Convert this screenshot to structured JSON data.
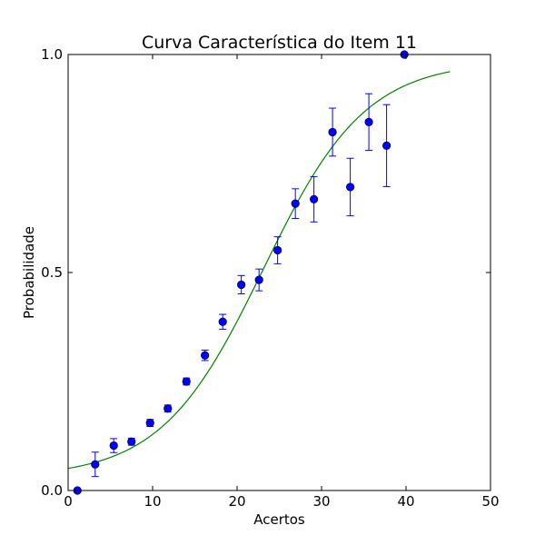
{
  "chart_data": {
    "type": "scatter",
    "title": "Curva Característica do Item 11",
    "xlabel": "Acertos",
    "ylabel": "Probabilidade",
    "xlim": [
      0,
      50
    ],
    "ylim": [
      0.0,
      1.0
    ],
    "x_ticks": [
      0,
      10,
      20,
      30,
      40,
      50
    ],
    "x_tick_labels": [
      "0",
      "10",
      "20",
      "30",
      "40",
      "50"
    ],
    "y_ticks": [
      0.0,
      0.5,
      1.0
    ],
    "y_tick_labels": [
      "0.0",
      "0.5",
      "1.0"
    ],
    "grid": false,
    "colors": {
      "points": "#0000ff",
      "curve": "#008000"
    },
    "series": [
      {
        "kind": "points-with-error-bars",
        "x": [
          1.1,
          3.2,
          5.4,
          7.5,
          9.7,
          11.8,
          14.0,
          16.2,
          18.3,
          20.5,
          22.6,
          24.8,
          26.9,
          29.1,
          31.3,
          33.4,
          35.6,
          37.7,
          39.8
        ],
        "y": [
          0.0,
          0.06,
          0.103,
          0.112,
          0.155,
          0.188,
          0.25,
          0.31,
          0.387,
          0.472,
          0.483,
          0.551,
          0.658,
          0.668,
          0.822,
          0.696,
          0.845,
          0.791,
          1.0
        ],
        "err": [
          0,
          0.028,
          0.016,
          0.008,
          0.008,
          0.008,
          0.008,
          0.012,
          0.017,
          0.021,
          0.025,
          0.031,
          0.034,
          0.052,
          0.055,
          0.066,
          0.065,
          0.094,
          0
        ]
      },
      {
        "kind": "logistic-curve",
        "x_range": [
          0,
          45.2
        ],
        "lower_asymptote": 0.03,
        "upper_asymptote": 0.985,
        "midpoint": 23.1,
        "slope": 0.165
      }
    ]
  }
}
